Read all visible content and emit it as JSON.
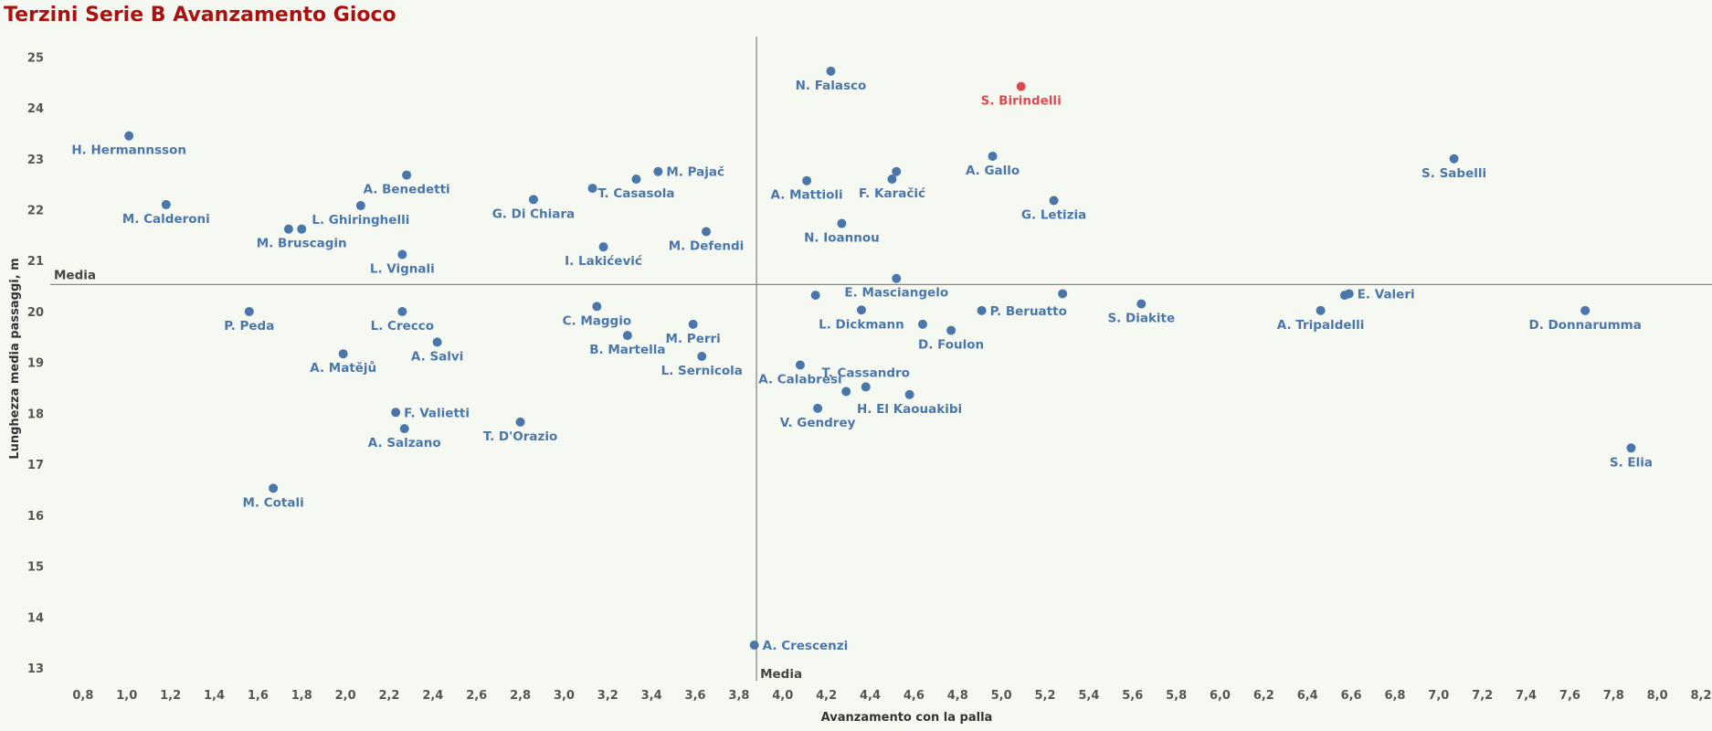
{
  "chart_data": {
    "type": "scatter",
    "title": "Terzini Serie B Avanzamento Gioco",
    "xlabel": "Avanzamento con la palla",
    "ylabel": "Lunghezza media passaggi, m",
    "xlim": [
      0.65,
      8.25
    ],
    "ylim": [
      12.75,
      25.4
    ],
    "xticks": [
      "0,8",
      "1,0",
      "1,2",
      "1,4",
      "1,6",
      "1,8",
      "2,0",
      "2,2",
      "2,4",
      "2,6",
      "2,8",
      "3,0",
      "3,2",
      "3,4",
      "3,6",
      "3,8",
      "4,0",
      "4,2",
      "4,4",
      "4,6",
      "4,8",
      "5,0",
      "5,2",
      "5,4",
      "5,6",
      "5,8",
      "6,0",
      "6,2",
      "6,4",
      "6,6",
      "6,8",
      "7,0",
      "7,2",
      "7,4",
      "7,6",
      "7,8",
      "8,0",
      "8,2"
    ],
    "yticks": [
      "13",
      "14",
      "15",
      "16",
      "17",
      "18",
      "19",
      "20",
      "21",
      "22",
      "23",
      "24",
      "25"
    ],
    "mean_x": 3.88,
    "mean_y": 20.53,
    "mean_label": "Media",
    "grid": false,
    "colors": {
      "point": "#4a76aa",
      "highlight": "#e04852",
      "mean_line": "#888888",
      "title": "#aa1111"
    },
    "points": [
      {
        "label": "N. Falasco",
        "x": 4.22,
        "y": 24.72,
        "lpos": "below"
      },
      {
        "label": "S. Birindelli",
        "x": 5.09,
        "y": 24.42,
        "lpos": "below",
        "highlight": true
      },
      {
        "label": "H. Hermannsson",
        "x": 1.01,
        "y": 23.45,
        "lpos": "below"
      },
      {
        "label": "A. Gallo",
        "x": 4.96,
        "y": 23.05,
        "lpos": "below"
      },
      {
        "label": "S. Sabelli",
        "x": 7.07,
        "y": 23.0,
        "lpos": "below"
      },
      {
        "label": "M. Pajač",
        "x": 3.43,
        "y": 22.75,
        "lpos": "right"
      },
      {
        "label": "",
        "x": 4.52,
        "y": 22.75,
        "lpos": "none"
      },
      {
        "label": "A. Benedetti",
        "x": 2.28,
        "y": 22.68,
        "lpos": "below"
      },
      {
        "label": "T. Casasola",
        "x": 3.33,
        "y": 22.6,
        "lpos": "below"
      },
      {
        "label": "F. Karačić",
        "x": 4.5,
        "y": 22.6,
        "lpos": "below"
      },
      {
        "label": "A. Mattioli",
        "x": 4.11,
        "y": 22.57,
        "lpos": "below"
      },
      {
        "label": "",
        "x": 3.13,
        "y": 22.42,
        "lpos": "none"
      },
      {
        "label": "G. Di Chiara",
        "x": 2.86,
        "y": 22.2,
        "lpos": "below"
      },
      {
        "label": "G. Letizia",
        "x": 5.24,
        "y": 22.18,
        "lpos": "below"
      },
      {
        "label": "M. Calderoni",
        "x": 1.18,
        "y": 22.1,
        "lpos": "below"
      },
      {
        "label": "L. Ghiringhelli",
        "x": 2.07,
        "y": 22.08,
        "lpos": "below"
      },
      {
        "label": "N. Ioannou",
        "x": 4.27,
        "y": 21.73,
        "lpos": "below"
      },
      {
        "label": "",
        "x": 1.74,
        "y": 21.62,
        "lpos": "none"
      },
      {
        "label": "M. Bruscagin",
        "x": 1.8,
        "y": 21.62,
        "lpos": "below"
      },
      {
        "label": "M. Defendi",
        "x": 3.65,
        "y": 21.57,
        "lpos": "below"
      },
      {
        "label": "I. Lakićević",
        "x": 3.18,
        "y": 21.27,
        "lpos": "below"
      },
      {
        "label": "L. Vignali",
        "x": 2.26,
        "y": 21.12,
        "lpos": "below"
      },
      {
        "label": "E. Masciangelo",
        "x": 4.52,
        "y": 20.65,
        "lpos": "below"
      },
      {
        "label": "",
        "x": 4.15,
        "y": 20.32,
        "lpos": "none"
      },
      {
        "label": "",
        "x": 5.28,
        "y": 20.35,
        "lpos": "none"
      },
      {
        "label": "",
        "x": 6.57,
        "y": 20.32,
        "lpos": "none"
      },
      {
        "label": "E. Valeri",
        "x": 6.59,
        "y": 20.35,
        "lpos": "right"
      },
      {
        "label": "S. Diakite",
        "x": 5.64,
        "y": 20.15,
        "lpos": "below"
      },
      {
        "label": "C. Maggio",
        "x": 3.15,
        "y": 20.1,
        "lpos": "below"
      },
      {
        "label": "P. Beruatto",
        "x": 4.91,
        "y": 20.02,
        "lpos": "right"
      },
      {
        "label": "L. Dickmann",
        "x": 4.36,
        "y": 20.03,
        "lpos": "below"
      },
      {
        "label": "A. Tripaldelli",
        "x": 6.46,
        "y": 20.02,
        "lpos": "below"
      },
      {
        "label": "D. Donnarumma",
        "x": 7.67,
        "y": 20.02,
        "lpos": "below"
      },
      {
        "label": "P. Peda",
        "x": 1.56,
        "y": 20.0,
        "lpos": "below"
      },
      {
        "label": "L. Crecco",
        "x": 2.26,
        "y": 20.0,
        "lpos": "below"
      },
      {
        "label": "M. Perri",
        "x": 3.59,
        "y": 19.75,
        "lpos": "below"
      },
      {
        "label": "",
        "x": 4.64,
        "y": 19.75,
        "lpos": "none"
      },
      {
        "label": "D. Foulon",
        "x": 4.77,
        "y": 19.63,
        "lpos": "below"
      },
      {
        "label": "B. Martella",
        "x": 3.29,
        "y": 19.53,
        "lpos": "below"
      },
      {
        "label": "A. Salvi",
        "x": 2.42,
        "y": 19.4,
        "lpos": "below"
      },
      {
        "label": "A. Matějů",
        "x": 1.99,
        "y": 19.17,
        "lpos": "below"
      },
      {
        "label": "L. Sernicola",
        "x": 3.63,
        "y": 19.12,
        "lpos": "below"
      },
      {
        "label": "A. Calabresi",
        "x": 4.08,
        "y": 18.95,
        "lpos": "below"
      },
      {
        "label": "T. Cassandro",
        "x": 4.38,
        "y": 18.52,
        "lpos": "above"
      },
      {
        "label": "",
        "x": 4.29,
        "y": 18.43,
        "lpos": "none"
      },
      {
        "label": "H. El Kaouakibi",
        "x": 4.58,
        "y": 18.37,
        "lpos": "below"
      },
      {
        "label": "V. Gendrey",
        "x": 4.16,
        "y": 18.1,
        "lpos": "below"
      },
      {
        "label": "F. Valietti",
        "x": 2.23,
        "y": 18.02,
        "lpos": "right"
      },
      {
        "label": "T. D'Orazio",
        "x": 2.8,
        "y": 17.83,
        "lpos": "below"
      },
      {
        "label": "A. Salzano",
        "x": 2.27,
        "y": 17.7,
        "lpos": "below"
      },
      {
        "label": "S. Elia",
        "x": 7.88,
        "y": 17.32,
        "lpos": "below"
      },
      {
        "label": "M. Cotali",
        "x": 1.67,
        "y": 16.53,
        "lpos": "below"
      },
      {
        "label": "A. Crescenzi",
        "x": 3.87,
        "y": 13.45,
        "lpos": "right"
      }
    ]
  }
}
